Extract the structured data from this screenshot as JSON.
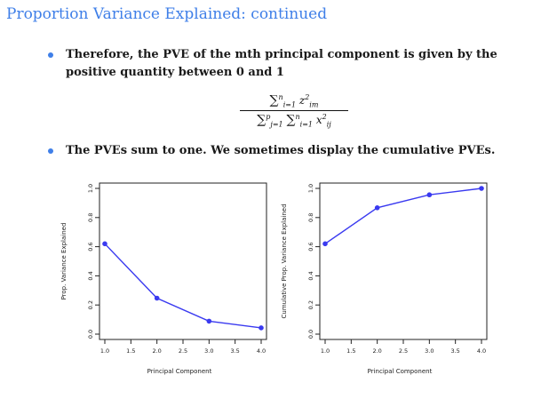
{
  "slide": {
    "title": "Proportion Variance Explained: continued",
    "bullets": [
      "Therefore, the PVE of the mth principal component is given by the positive quantity between 0 and 1",
      "The PVEs sum to one. We sometimes display the cumulative PVEs."
    ],
    "formula": {
      "numerator": "∑ⁿᵢ₌₁ z²ᵢₘ",
      "denominator": "∑ᵖⱼ₌₁ ∑ⁿᵢ₌₁ x²ᵢⱼ"
    }
  },
  "colors": {
    "accent": "#3f7fe8",
    "series": "#3a3af0"
  },
  "chart_data": [
    {
      "type": "line",
      "title": "",
      "xlabel": "Principal Component",
      "ylabel": "Prop. Variance Explained",
      "x": [
        1,
        2,
        3,
        4
      ],
      "values": [
        0.62,
        0.247,
        0.089,
        0.043
      ],
      "xlim": [
        1,
        4
      ],
      "ylim": [
        0,
        1
      ],
      "xticks": [
        "1.0",
        "1.5",
        "2.0",
        "2.5",
        "3.0",
        "3.5",
        "4.0"
      ],
      "yticks": [
        "0.0",
        "0.2",
        "0.4",
        "0.6",
        "0.8",
        "1.0"
      ],
      "grid": false
    },
    {
      "type": "line",
      "title": "",
      "xlabel": "Principal Component",
      "ylabel": "Cumulative Prop. Variance Explained",
      "x": [
        1,
        2,
        3,
        4
      ],
      "values": [
        0.62,
        0.867,
        0.956,
        1.0
      ],
      "xlim": [
        1,
        4
      ],
      "ylim": [
        0,
        1
      ],
      "xticks": [
        "1.0",
        "1.5",
        "2.0",
        "2.5",
        "3.0",
        "3.5",
        "4.0"
      ],
      "yticks": [
        "0.0",
        "0.2",
        "0.4",
        "0.6",
        "0.8",
        "1.0"
      ],
      "grid": false
    }
  ]
}
